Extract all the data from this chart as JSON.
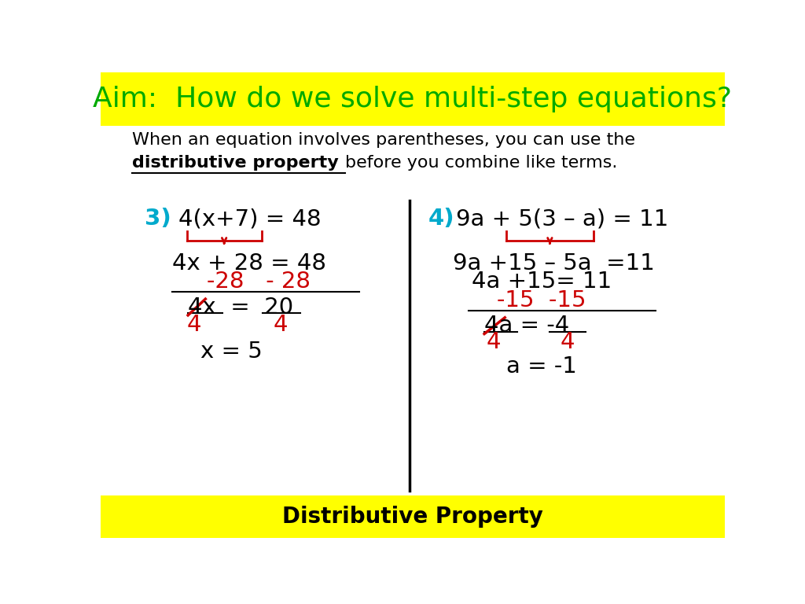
{
  "title": "Aim:  How do we solve multi-step equations?",
  "title_color": "#00aa00",
  "title_bg": "#ffff00",
  "footer_text": "Distributive Property",
  "footer_bg": "#ffff00",
  "body_bg": "#ffffff",
  "intro_line1": "When an equation involves parentheses, you can use the",
  "intro_line2_bold": "distributive property ",
  "intro_line2_after": "before you combine like terms.",
  "cyan_color": "#00aacc",
  "red_color": "#cc0000",
  "black_color": "#000000"
}
